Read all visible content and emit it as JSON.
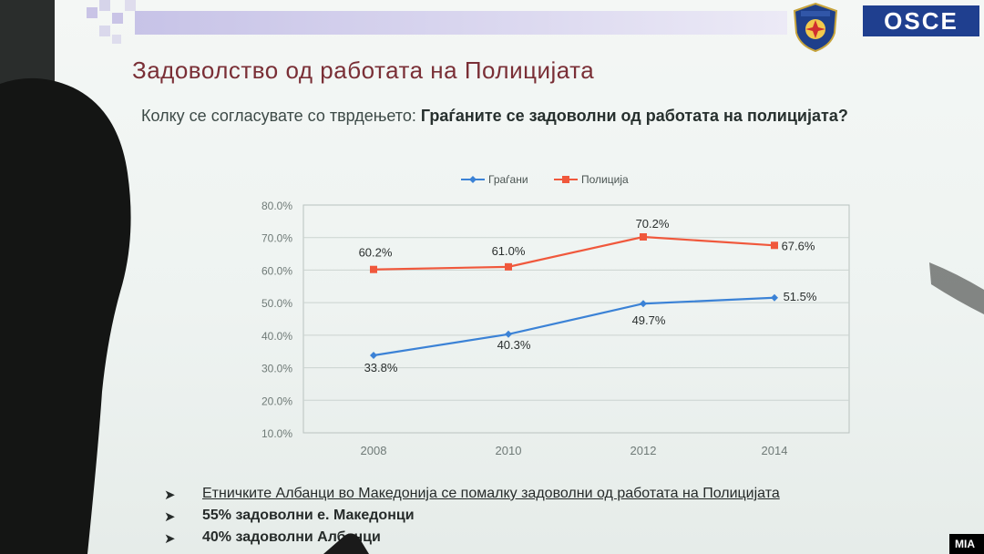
{
  "header": {
    "title": "Задоволство од работата на Полицијата",
    "question_prefix": "Колку се согласувате со тврдењето: ",
    "question_bold": "Граѓаните се задоволни од работата на полицијата?"
  },
  "logos": {
    "osce": "OSCE",
    "police_badge": "shield-emblem"
  },
  "chart_data": {
    "type": "line",
    "categories": [
      "2008",
      "2010",
      "2012",
      "2014"
    ],
    "series": [
      {
        "name": "Граѓани",
        "color": "#3b82d6",
        "values": [
          33.8,
          40.3,
          49.7,
          51.5
        ],
        "labels": [
          "33.8%",
          "40.3%",
          "49.7%",
          "51.5%"
        ]
      },
      {
        "name": "Полиција",
        "color": "#f0583c",
        "values": [
          60.2,
          61.0,
          70.2,
          67.6
        ],
        "labels": [
          "60.2%",
          "61.0%",
          "70.2%",
          "67.6%"
        ]
      }
    ],
    "yticks": [
      "10.0%",
      "20.0%",
      "30.0%",
      "40.0%",
      "50.0%",
      "60.0%",
      "70.0%",
      "80.0%"
    ],
    "ylim": [
      10,
      80
    ],
    "grid": true,
    "legend": "top-center"
  },
  "bullets": [
    {
      "mark": "➤",
      "text": "Етничките Албанци во Македонија се помалку задоволни од работата на Полицијата"
    },
    {
      "mark": "➤",
      "text": "55% задоволни е. Македонци"
    },
    {
      "mark": "➤",
      "text": "40% задоволни Албанци"
    }
  ],
  "watermark": "MIA"
}
